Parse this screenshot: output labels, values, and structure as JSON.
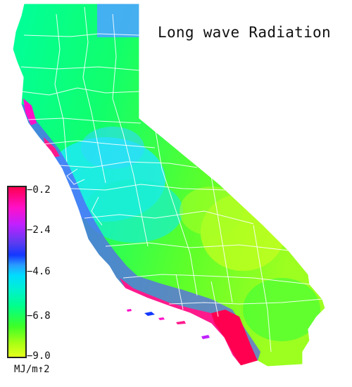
{
  "title": "Long wave Radiation",
  "legend": {
    "units": "MJ/m↑2",
    "ticks": [
      "−0.2",
      "−2.4",
      "−4.6",
      "−6.8",
      "−9.0"
    ],
    "min": -9.0,
    "max": -0.2,
    "colors": [
      "#ff0050",
      "#ff10c8",
      "#c020ff",
      "#1438ff",
      "#00dcff",
      "#00ff8c",
      "#3cff28",
      "#e6ff1a"
    ]
  },
  "map": {
    "region": "California",
    "features": [
      "county-boundaries",
      "coastline",
      "islands"
    ]
  }
}
